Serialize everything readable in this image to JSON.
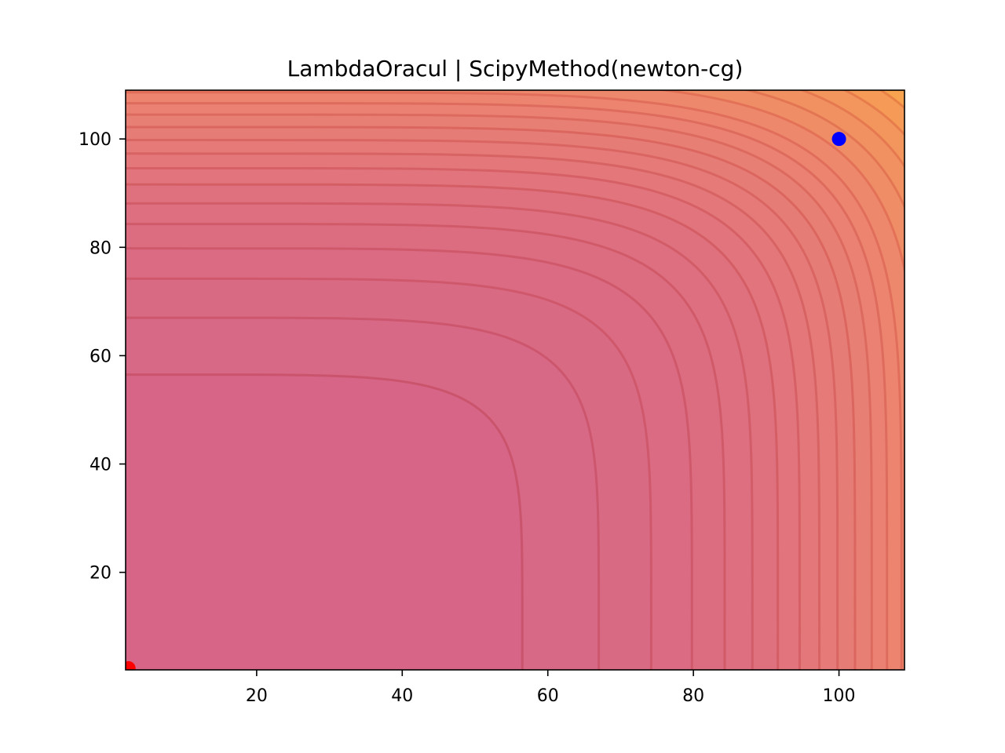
{
  "chart_data": {
    "type": "contour",
    "title": "LambdaOracul | ScipyMethod(newton-cg)",
    "xlabel": "",
    "ylabel": "",
    "xlim": [
      2,
      109
    ],
    "ylim": [
      2,
      109
    ],
    "x_ticks": [
      20,
      40,
      60,
      80,
      100
    ],
    "y_ticks": [
      20,
      40,
      60,
      80,
      100
    ],
    "x_tick_labels": [
      "20",
      "40",
      "60",
      "80",
      "100"
    ],
    "y_tick_labels": [
      "20",
      "40",
      "60",
      "80",
      "100"
    ],
    "colormap": "plasma",
    "contour_intercepts": [
      56.5,
      67,
      74.2,
      79.8,
      84.3,
      88.1,
      91.6,
      94.6,
      97.3,
      99.8,
      102.2,
      104.5,
      106.6,
      108.6
    ],
    "points": [
      {
        "x": 100,
        "y": 100,
        "color": "#0000ff",
        "label": ""
      },
      {
        "x": 2.4,
        "y": 2.3,
        "color": "#ff0000",
        "label": ""
      }
    ],
    "grid": false
  }
}
